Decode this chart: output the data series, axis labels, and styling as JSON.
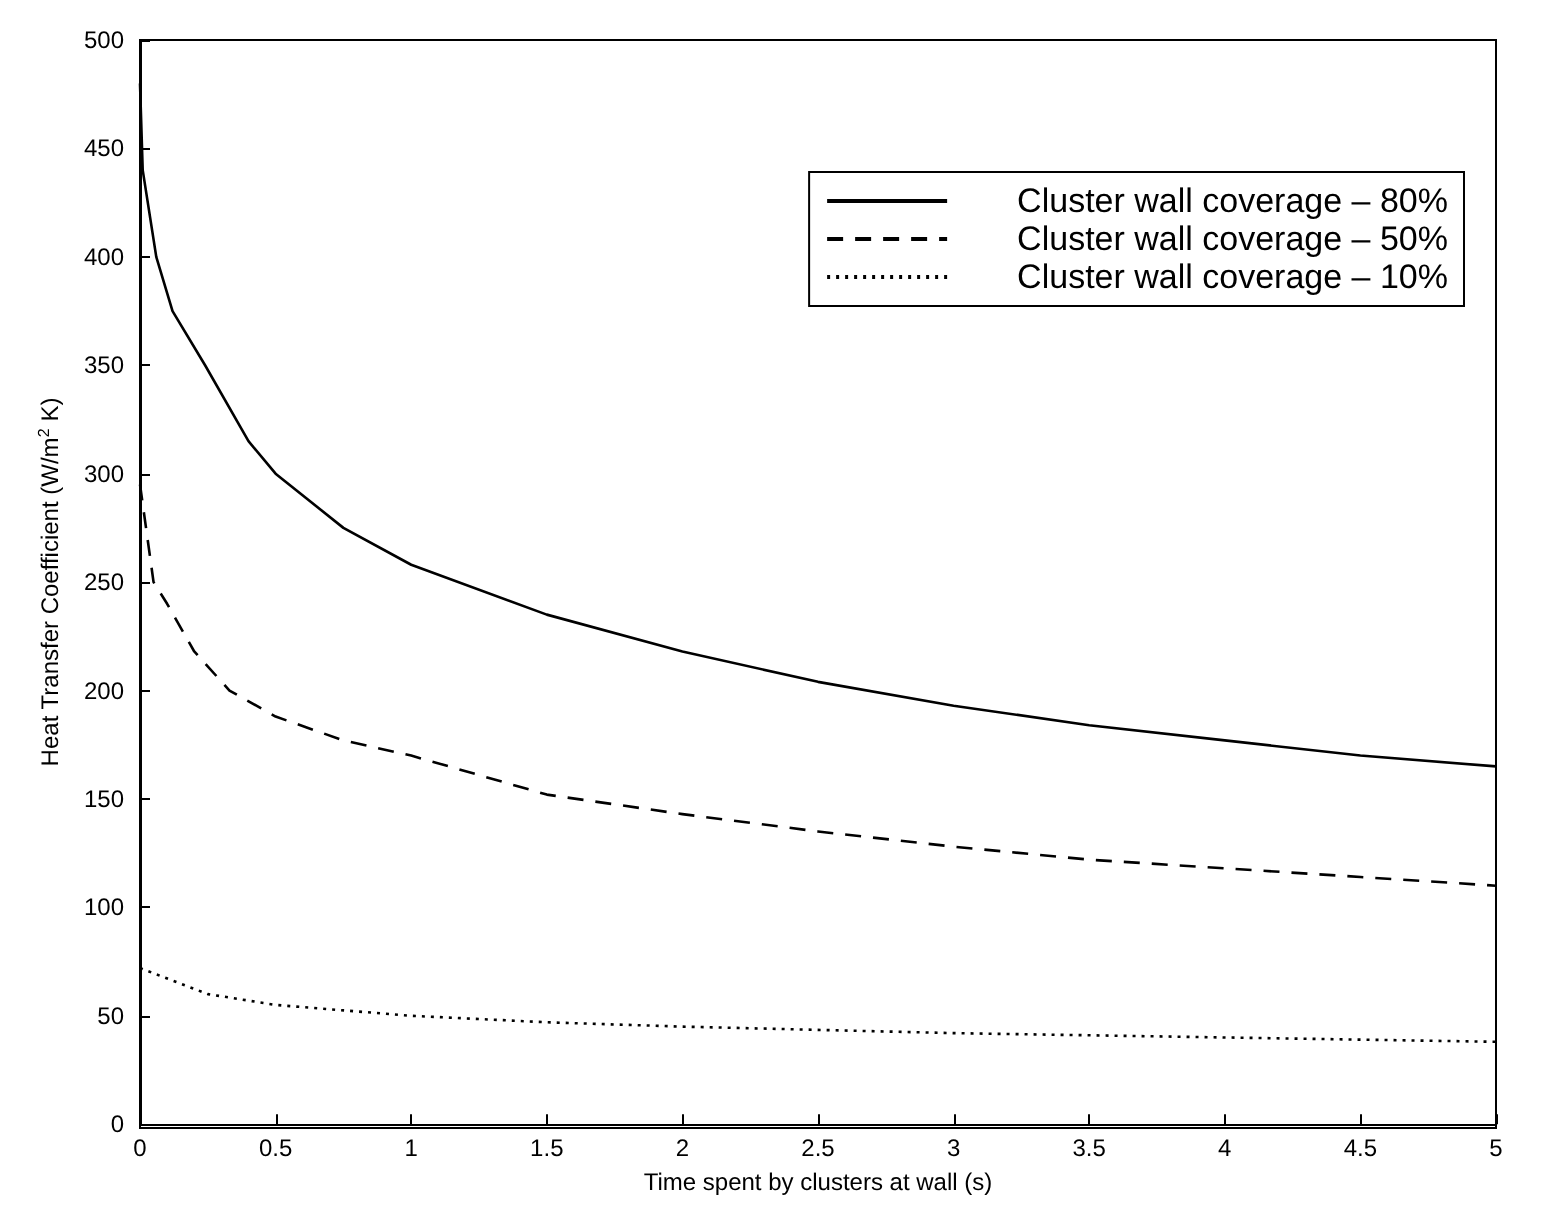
{
  "chart_data": {
    "type": "line",
    "xlabel": "Time spent by clusters at wall (s)",
    "ylabel": "Heat Transfer Coefficient (W/m$^{2}$ K)",
    "xlim": [
      0,
      5
    ],
    "xticks": [
      0,
      0.5,
      1,
      1.5,
      2,
      2.5,
      3,
      3.5,
      4,
      4.5,
      5
    ],
    "ylim": [
      0,
      500
    ],
    "yticks": [
      0,
      50,
      100,
      150,
      200,
      250,
      300,
      350,
      400,
      450,
      500
    ],
    "grid": false,
    "legend": "top right",
    "marker": "none",
    "series": [
      {
        "name": "Cluster wall coverage – 80%",
        "color": "#000000",
        "line_style": "solid",
        "x": [
          0,
          0.01,
          0.06,
          0.12,
          0.24,
          0.4,
          0.5,
          0.75,
          1,
          1.5,
          2,
          2.5,
          3,
          3.5,
          4,
          4.5,
          5
        ],
        "values": [
          480,
          440,
          400,
          375,
          350,
          315,
          300,
          275,
          258,
          235,
          218,
          204,
          193,
          184,
          177,
          170,
          165
        ]
      },
      {
        "name": "Cluster wall coverage – 50%",
        "color": "#000000",
        "line_style": "dashed",
        "x": [
          0,
          0.05,
          0.1,
          0.2,
          0.33,
          0.5,
          0.75,
          1,
          1.5,
          2,
          2.5,
          3,
          3.5,
          4,
          4.5,
          5
        ],
        "values": [
          295,
          250,
          240,
          218,
          200,
          188,
          177,
          170,
          152,
          143,
          135,
          128,
          122,
          118,
          114,
          110
        ]
      },
      {
        "name": "Cluster wall coverage – 10%",
        "color": "#000000",
        "line_style": "dotted",
        "x": [
          0,
          0.25,
          0.5,
          1,
          1.5,
          2,
          3,
          4,
          5
        ],
        "values": [
          72,
          60,
          55,
          50,
          47,
          45,
          42,
          40,
          38
        ]
      }
    ]
  }
}
